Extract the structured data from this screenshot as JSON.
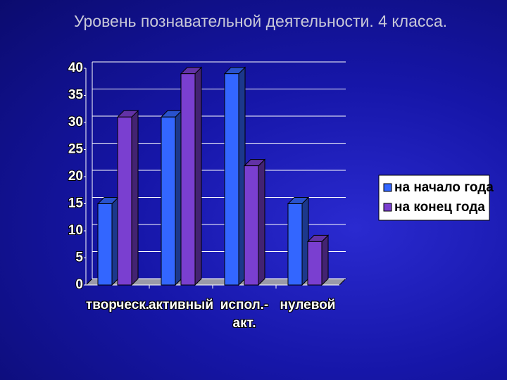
{
  "chart_data": {
    "type": "bar",
    "title": "Уровень познавательной деятельности. 4 класса.",
    "categories": [
      "творческ.",
      "активный",
      "испол.-акт.",
      "нулевой"
    ],
    "series": [
      {
        "name": "на начало года",
        "color": "#3366ff",
        "values": [
          15,
          31,
          39,
          15
        ]
      },
      {
        "name": "на конец года",
        "color": "#7a3fd0",
        "values": [
          31,
          39,
          22,
          8
        ]
      }
    ],
    "ylim": [
      0,
      40
    ],
    "yticks": [
      0,
      5,
      10,
      15,
      20,
      25,
      30,
      35,
      40
    ],
    "grid": true,
    "legend": "right"
  }
}
